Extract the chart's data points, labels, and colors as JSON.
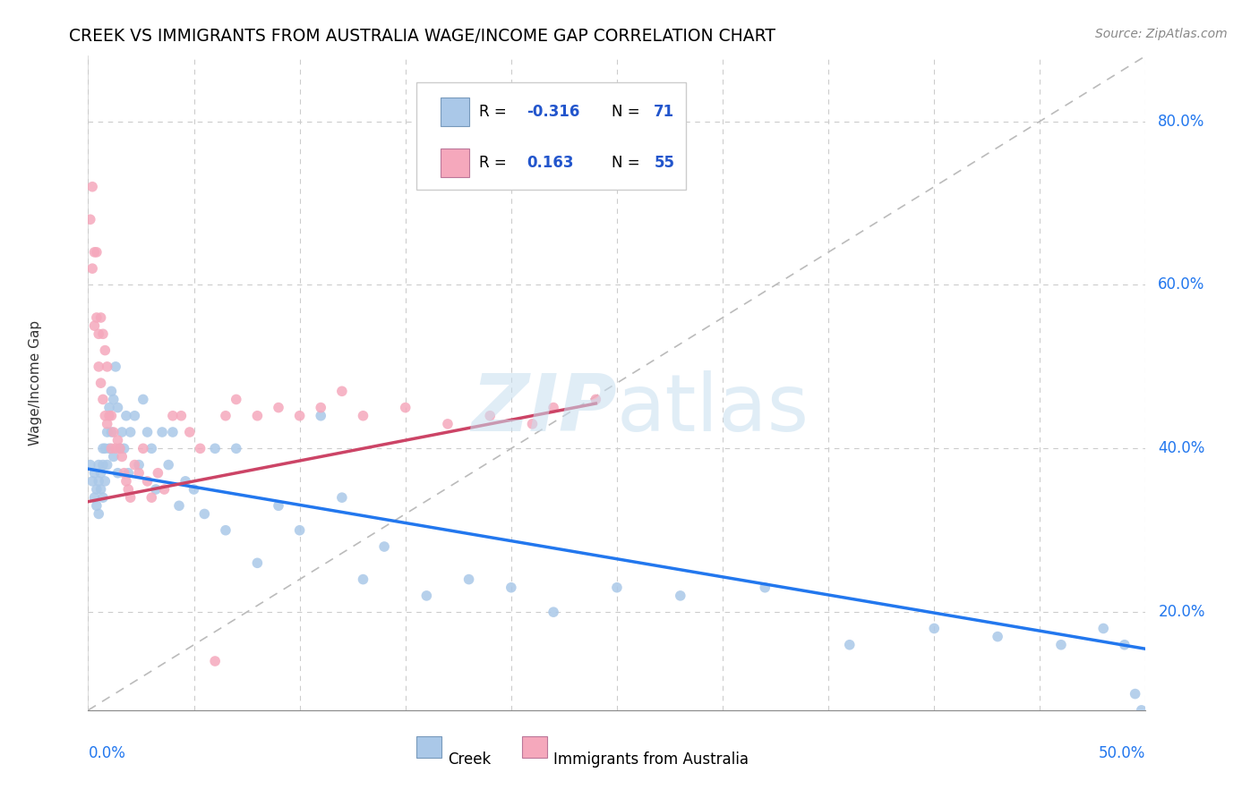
{
  "title": "CREEK VS IMMIGRANTS FROM AUSTRALIA WAGE/INCOME GAP CORRELATION CHART",
  "source": "Source: ZipAtlas.com",
  "ylabel": "Wage/Income Gap",
  "xlim": [
    0.0,
    0.5
  ],
  "ylim": [
    0.08,
    0.88
  ],
  "yticks": [
    0.2,
    0.4,
    0.6,
    0.8
  ],
  "ytick_labels": [
    "20.0%",
    "40.0%",
    "60.0%",
    "80.0%"
  ],
  "xtick_positions": [
    0.0,
    0.05,
    0.1,
    0.15,
    0.2,
    0.25,
    0.3,
    0.35,
    0.4,
    0.45,
    0.5
  ],
  "creek_R": -0.316,
  "creek_N": 71,
  "immigrants_R": 0.163,
  "immigrants_N": 55,
  "creek_dot_color": "#aac8e8",
  "creek_line_color": "#2277ee",
  "immigrants_dot_color": "#f5a8bc",
  "immigrants_line_color": "#cc4466",
  "legend_text_color": "#2255cc",
  "grid_color": "#cccccc",
  "ref_line_color": "#bbbbbb",
  "watermark_color": "#c8dff0",
  "creek_x": [
    0.001,
    0.002,
    0.003,
    0.003,
    0.004,
    0.004,
    0.005,
    0.005,
    0.005,
    0.006,
    0.006,
    0.007,
    0.007,
    0.007,
    0.008,
    0.008,
    0.009,
    0.009,
    0.01,
    0.01,
    0.011,
    0.011,
    0.012,
    0.012,
    0.013,
    0.014,
    0.014,
    0.015,
    0.016,
    0.017,
    0.018,
    0.019,
    0.02,
    0.022,
    0.024,
    0.026,
    0.028,
    0.03,
    0.032,
    0.035,
    0.038,
    0.04,
    0.043,
    0.046,
    0.05,
    0.055,
    0.06,
    0.065,
    0.07,
    0.08,
    0.09,
    0.1,
    0.11,
    0.12,
    0.13,
    0.14,
    0.16,
    0.18,
    0.2,
    0.22,
    0.25,
    0.28,
    0.32,
    0.36,
    0.4,
    0.43,
    0.46,
    0.48,
    0.49,
    0.495,
    0.498
  ],
  "creek_y": [
    0.38,
    0.36,
    0.37,
    0.34,
    0.35,
    0.33,
    0.36,
    0.38,
    0.32,
    0.37,
    0.35,
    0.38,
    0.4,
    0.34,
    0.4,
    0.36,
    0.42,
    0.38,
    0.45,
    0.4,
    0.47,
    0.42,
    0.46,
    0.39,
    0.5,
    0.45,
    0.37,
    0.4,
    0.42,
    0.4,
    0.44,
    0.37,
    0.42,
    0.44,
    0.38,
    0.46,
    0.42,
    0.4,
    0.35,
    0.42,
    0.38,
    0.42,
    0.33,
    0.36,
    0.35,
    0.32,
    0.4,
    0.3,
    0.4,
    0.26,
    0.33,
    0.3,
    0.44,
    0.34,
    0.24,
    0.28,
    0.22,
    0.24,
    0.23,
    0.2,
    0.23,
    0.22,
    0.23,
    0.16,
    0.18,
    0.17,
    0.16,
    0.18,
    0.16,
    0.1,
    0.08
  ],
  "immigrants_x": [
    0.001,
    0.002,
    0.002,
    0.003,
    0.003,
    0.004,
    0.004,
    0.005,
    0.005,
    0.006,
    0.006,
    0.007,
    0.007,
    0.008,
    0.008,
    0.009,
    0.009,
    0.01,
    0.011,
    0.011,
    0.012,
    0.013,
    0.014,
    0.015,
    0.016,
    0.017,
    0.018,
    0.019,
    0.02,
    0.022,
    0.024,
    0.026,
    0.028,
    0.03,
    0.033,
    0.036,
    0.04,
    0.044,
    0.048,
    0.053,
    0.06,
    0.065,
    0.07,
    0.08,
    0.09,
    0.1,
    0.11,
    0.12,
    0.13,
    0.15,
    0.17,
    0.19,
    0.21,
    0.22,
    0.24
  ],
  "immigrants_y": [
    0.68,
    0.72,
    0.62,
    0.64,
    0.55,
    0.64,
    0.56,
    0.54,
    0.5,
    0.56,
    0.48,
    0.54,
    0.46,
    0.52,
    0.44,
    0.5,
    0.43,
    0.44,
    0.44,
    0.4,
    0.42,
    0.4,
    0.41,
    0.4,
    0.39,
    0.37,
    0.36,
    0.35,
    0.34,
    0.38,
    0.37,
    0.4,
    0.36,
    0.34,
    0.37,
    0.35,
    0.44,
    0.44,
    0.42,
    0.4,
    0.14,
    0.44,
    0.46,
    0.44,
    0.45,
    0.44,
    0.45,
    0.47,
    0.44,
    0.45,
    0.43,
    0.44,
    0.43,
    0.45,
    0.46
  ],
  "ref_line_x": [
    0.0,
    0.5
  ],
  "ref_line_y": [
    0.08,
    0.88
  ]
}
